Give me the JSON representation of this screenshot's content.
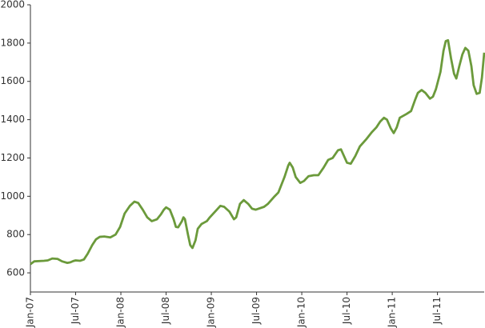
{
  "chart_data": {
    "type": "line",
    "x": [
      0,
      0.5,
      1.8,
      2.3,
      2.9,
      3.6,
      4.2,
      4.9,
      5.3,
      5.7,
      6.0,
      6.6,
      7.1,
      7.6,
      8.2,
      8.7,
      9.2,
      9.8,
      10.6,
      11.3,
      11.9,
      12.5,
      13.2,
      13.8,
      14.3,
      14.9,
      15.5,
      16.1,
      16.8,
      17.3,
      17.7,
      18.0,
      18.5,
      19.0,
      19.3,
      19.6,
      20.1,
      20.3,
      20.5,
      20.9,
      21.2,
      21.5,
      21.9,
      22.2,
      22.7,
      23.4,
      23.8,
      25.2,
      25.7,
      26.4,
      27.0,
      27.3,
      27.8,
      28.3,
      28.9,
      29.4,
      29.9,
      31.0,
      31.5,
      32.4,
      32.9,
      33.7,
      34.2,
      34.4,
      34.8,
      35.2,
      35.8,
      36.3,
      36.9,
      37.6,
      38.2,
      38.9,
      39.5,
      40.1,
      40.8,
      41.2,
      41.6,
      42.0,
      42.5,
      43.1,
      43.7,
      44.6,
      45.3,
      45.9,
      46.4,
      46.9,
      47.3,
      47.8,
      48.2,
      48.6,
      49.0,
      49.9,
      50.5,
      51.0,
      51.4,
      51.9,
      52.4,
      53.0,
      53.4,
      53.8,
      54.4,
      54.8,
      55.1,
      55.4,
      55.8,
      56.2,
      56.5,
      56.9,
      57.3,
      57.7,
      58.1,
      58.5,
      58.8,
      59.2,
      59.6,
      59.9,
      60.2
    ],
    "series": [
      {
        "color": "#6b9a3b",
        "values": [
          645,
          660,
          663,
          665,
          675,
          673,
          660,
          652,
          655,
          662,
          665,
          663,
          670,
          700,
          745,
          775,
          788,
          790,
          785,
          800,
          840,
          910,
          950,
          972,
          965,
          930,
          890,
          870,
          880,
          905,
          930,
          942,
          930,
          880,
          840,
          838,
          870,
          890,
          880,
          800,
          745,
          730,
          770,
          830,
          855,
          870,
          890,
          950,
          945,
          920,
          880,
          890,
          960,
          980,
          960,
          935,
          930,
          945,
          960,
          1000,
          1020,
          1100,
          1160,
          1175,
          1150,
          1100,
          1070,
          1080,
          1105,
          1110,
          1110,
          1150,
          1190,
          1200,
          1240,
          1245,
          1210,
          1175,
          1170,
          1210,
          1260,
          1300,
          1335,
          1360,
          1390,
          1410,
          1400,
          1355,
          1330,
          1360,
          1410,
          1430,
          1445,
          1500,
          1540,
          1555,
          1540,
          1510,
          1520,
          1560,
          1650,
          1760,
          1810,
          1815,
          1720,
          1640,
          1615,
          1680,
          1740,
          1775,
          1760,
          1680,
          1580,
          1535,
          1540,
          1620,
          1750
        ]
      }
    ],
    "xlim": [
      0,
      60.2
    ],
    "xticks": [
      {
        "value": 0,
        "label": "Jan-07"
      },
      {
        "value": 6,
        "label": "Jul-07"
      },
      {
        "value": 12,
        "label": "Jan-08"
      },
      {
        "value": 18,
        "label": "Jul-08"
      },
      {
        "value": 24,
        "label": "Jan-09"
      },
      {
        "value": 30,
        "label": "Jul-09"
      },
      {
        "value": 36,
        "label": "Jan-10"
      },
      {
        "value": 42,
        "label": "Jul-10"
      },
      {
        "value": 48,
        "label": "Jan-11"
      },
      {
        "value": 54,
        "label": "Jul-11"
      }
    ],
    "ylim": [
      500,
      2000
    ],
    "yticks": [
      600,
      800,
      1000,
      1200,
      1400,
      1600,
      1800,
      2000
    ]
  }
}
